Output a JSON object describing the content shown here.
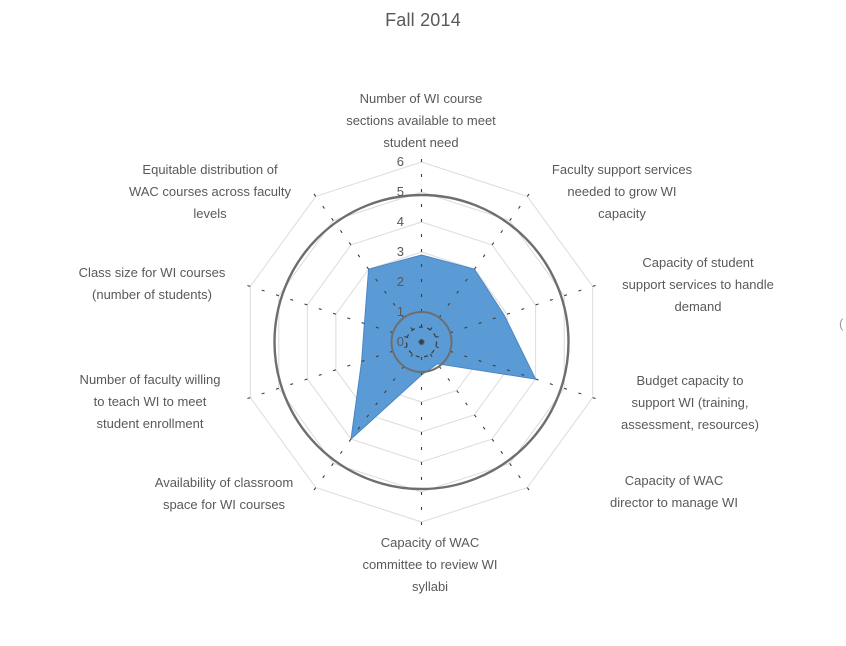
{
  "chart_title": "Fall 2014",
  "chart_data": {
    "type": "radar",
    "title": "Fall 2014",
    "categories": [
      "Number of WI course\nsections available to meet\nstudent need",
      "Faculty support services\nneeded to grow WI\ncapacity",
      "Capacity of student\nsupport services to handle\ndemand",
      "Budget capacity to\nsupport WI (training,\nassessment, resources)",
      "Capacity of WAC\ndirector to manage WI",
      "Capacity of WAC\ncommittee to review WI\nsyllabi",
      "Availability of classroom\nspace for WI courses",
      "Number of faculty willing\nto teach WI to meet\nstudent enrollment",
      "Class size for WI courses\n(number of students)",
      "Equitable distribution of\nWAC courses across faculty\nlevels"
    ],
    "series": [
      {
        "name": "Fall 2014",
        "values": [
          2.9,
          3.0,
          2.9,
          4.0,
          0.9,
          1.1,
          4.0,
          2.1,
          2.0,
          3.0
        ],
        "fill": "#5B9BD5",
        "stroke": "#4A86C5"
      }
    ],
    "reference_circles": [
      {
        "value": 4.9,
        "style": "solid",
        "color": "#6E6E6E",
        "width": 2.4
      },
      {
        "value": 1.0,
        "style": "solid",
        "color": "#6E6E6E",
        "width": 2.0
      },
      {
        "value": 0.5,
        "style": "dashed",
        "color": "#3F3F3F",
        "width": 1.3
      }
    ],
    "radial_axis": {
      "min": 0,
      "max": 6,
      "tick_interval": 1,
      "tick_labels": [
        "0",
        "1",
        "2",
        "3",
        "4",
        "5",
        "6"
      ]
    },
    "grid": {
      "rings": "light gray 10-sided polygon rings at integer levels 1-6",
      "spokes": "dark gray dashed radial category lines"
    },
    "legend": "none"
  },
  "colors": {
    "title_text": "#595959",
    "category_text": "#595959",
    "tick_text": "#595959",
    "grid_ring": "#DCDCDC",
    "spoke_dash": "#3F3F3F",
    "series_fill": "#5B9BD5"
  },
  "edge_artifact": "("
}
